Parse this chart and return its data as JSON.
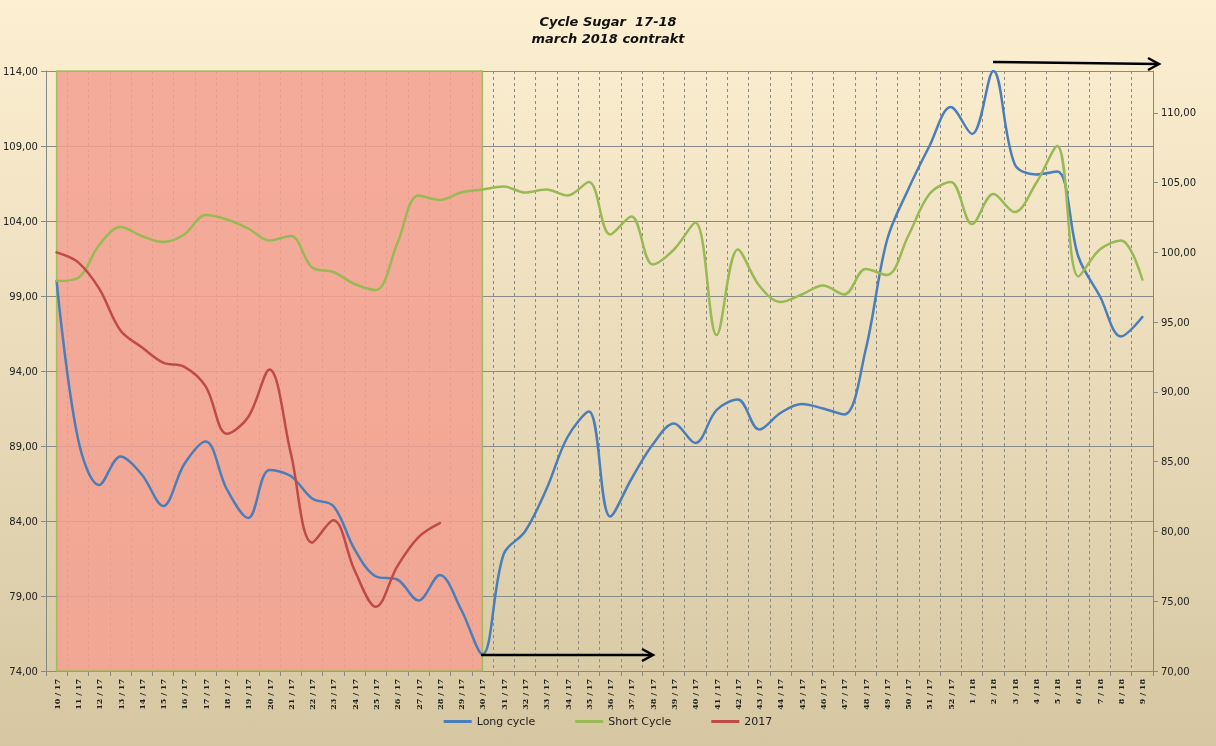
{
  "chart_data": {
    "type": "line",
    "title": "Cycle Sugar  17-18",
    "subtitle": "march 2018 contrakt",
    "categories": [
      "10 / 17",
      "11 / 17",
      "12 / 17",
      "13 / 17",
      "14 / 17",
      "15 / 17",
      "16 / 17",
      "17 / 17",
      "18 / 17",
      "19 / 17",
      "20 / 17",
      "21 / 17",
      "22 / 17",
      "23 / 17",
      "24 / 17",
      "25 / 17",
      "26 / 17",
      "27 / 17",
      "28 / 17",
      "29 / 17",
      "30 / 17",
      "31 / 17",
      "32 / 17",
      "33 / 17",
      "34 / 17",
      "35 / 17",
      "36 / 17",
      "37 / 17",
      "38 / 17",
      "39 / 17",
      "40 / 17",
      "41 / 17",
      "42 / 17",
      "43 / 17",
      "44 / 17",
      "45 / 17",
      "46 / 17",
      "47 / 17",
      "48 / 17",
      "49 / 17",
      "50 / 17",
      "51 / 17",
      "52 / 17",
      "1 / 18",
      "2 / 18",
      "3 / 18",
      "4 / 18",
      "5 / 18",
      "6 / 18",
      "7 / 18",
      "8 / 18",
      "9 / 18"
    ],
    "series": [
      {
        "name": "Long cycle",
        "color": "#4a7ebb",
        "values": [
          100.0,
          89.5,
          86.4,
          88.3,
          87.1,
          85.0,
          87.8,
          89.3,
          86.1,
          84.2,
          87.4,
          87.0,
          85.5,
          85.0,
          82.1,
          80.3,
          80.1,
          78.7,
          80.4,
          78.1,
          75.1,
          81.8,
          83.3,
          86.1,
          89.6,
          91.3,
          84.3,
          86.8,
          89.1,
          90.5,
          89.2,
          91.4,
          92.1,
          90.1,
          91.2,
          91.8,
          91.5,
          91.1,
          95.4,
          102.7,
          106.1,
          109.0,
          111.6,
          109.8,
          114.0,
          107.8,
          107.1,
          107.3,
          101.6,
          99.0,
          96.3,
          97.6
        ]
      },
      {
        "name": "Short Cycle",
        "color": "#98b954",
        "values": [
          100.0,
          100.2,
          102.4,
          103.6,
          103.0,
          102.6,
          103.1,
          104.4,
          104.1,
          103.5,
          102.7,
          103.0,
          100.9,
          100.6,
          99.8,
          99.4,
          102.5,
          105.7,
          105.4,
          105.9,
          106.1,
          106.3,
          105.9,
          106.1,
          105.7,
          106.6,
          103.1,
          104.3,
          101.1,
          102.1,
          103.9,
          96.4,
          102.1,
          99.7,
          98.6,
          99.1,
          99.7,
          99.1,
          100.8,
          100.4,
          103.0,
          105.8,
          106.6,
          103.8,
          105.8,
          104.6,
          106.5,
          109.0,
          100.3,
          102.1,
          102.7,
          100.1
        ]
      },
      {
        "name": "2017",
        "color": "#be4b48",
        "axis": "y2",
        "values": [
          100.0,
          99.3,
          97.4,
          94.4,
          93.2,
          92.1,
          91.8,
          90.4,
          87.0,
          88.2,
          91.6,
          85.6,
          79.2,
          80.8,
          77.2,
          74.6,
          77.5,
          79.6,
          80.6,
          null,
          null,
          null,
          null,
          null,
          null,
          null,
          null,
          null,
          null,
          null,
          null,
          null,
          null,
          null,
          null,
          null,
          null,
          null,
          null,
          null,
          null,
          null,
          null,
          null,
          null,
          null,
          null,
          null,
          null,
          null,
          null,
          null
        ]
      }
    ],
    "ylim": [
      74,
      114
    ],
    "yticks": [
      {
        "value": 74,
        "label": "74,00"
      },
      {
        "value": 79,
        "label": "79,00"
      },
      {
        "value": 84,
        "label": "84,00"
      },
      {
        "value": 89,
        "label": "89,00"
      },
      {
        "value": 94,
        "label": "94,00"
      },
      {
        "value": 99,
        "label": "99,00"
      },
      {
        "value": 104,
        "label": "104,00"
      },
      {
        "value": 109,
        "label": "109,00"
      },
      {
        "value": 114,
        "label": "114,00"
      }
    ],
    "y2lim": [
      70,
      113
    ],
    "y2ticks": [
      {
        "value": 70,
        "label": "70,00"
      },
      {
        "value": 75,
        "label": "75,00"
      },
      {
        "value": 80,
        "label": "80,00"
      },
      {
        "value": 85,
        "label": "85,00"
      },
      {
        "value": 90,
        "label": "90,00"
      },
      {
        "value": 95,
        "label": "95,00"
      },
      {
        "value": 100,
        "label": "100,00"
      },
      {
        "value": 105,
        "label": "105,00"
      },
      {
        "value": 110,
        "label": "110,00"
      }
    ],
    "bands": [
      {
        "axis": "x",
        "from": "10 / 17",
        "to": "30 / 17",
        "color": "#f4a090"
      }
    ],
    "grid": true,
    "legend": "bottom",
    "marker": "none",
    "line_style": "solid"
  }
}
